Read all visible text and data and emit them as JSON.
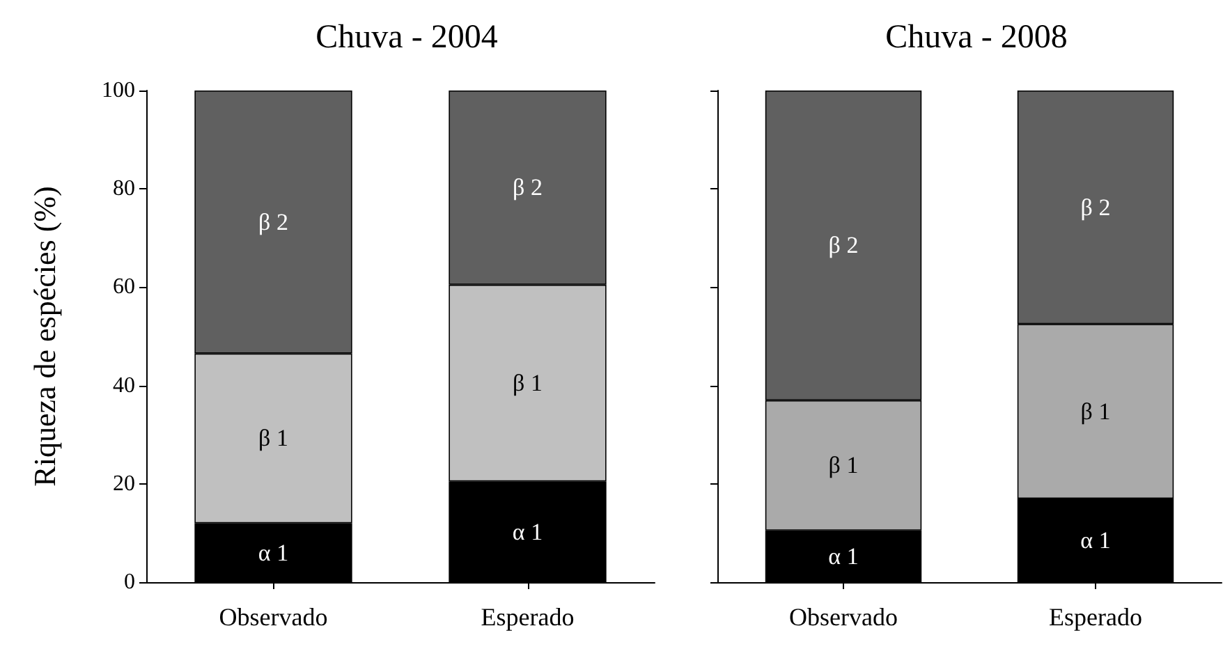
{
  "chart_data": [
    {
      "type": "bar",
      "title": "Chuva - 2004",
      "ylabel": "Riqueza de espécies (%)",
      "categories": [
        "Observado",
        "Esperado"
      ],
      "stacked": true,
      "series": [
        {
          "name": "α 1",
          "color": "#000000",
          "values": [
            12,
            20.5
          ]
        },
        {
          "name": "β 1",
          "color": "#c0c0c0",
          "values": [
            34.5,
            40
          ]
        },
        {
          "name": "β 2",
          "color": "#606060",
          "values": [
            53.5,
            39.5
          ]
        }
      ],
      "ylim": [
        0,
        100
      ],
      "yticks": [
        0,
        20,
        40,
        60,
        80,
        100
      ]
    },
    {
      "type": "bar",
      "title": "Chuva - 2008",
      "categories": [
        "Observado",
        "Esperado"
      ],
      "stacked": true,
      "series": [
        {
          "name": "α 1",
          "color": "#000000",
          "values": [
            10.5,
            17
          ]
        },
        {
          "name": "β 1",
          "color": "#aaaaaa",
          "values": [
            26.5,
            35.5
          ]
        },
        {
          "name": "β 2",
          "color": "#606060",
          "values": [
            63,
            47.5
          ]
        }
      ],
      "ylim": [
        0,
        100
      ],
      "yticks": [
        0,
        20,
        40,
        60,
        80,
        100
      ],
      "tick_labels": "x"
    }
  ]
}
